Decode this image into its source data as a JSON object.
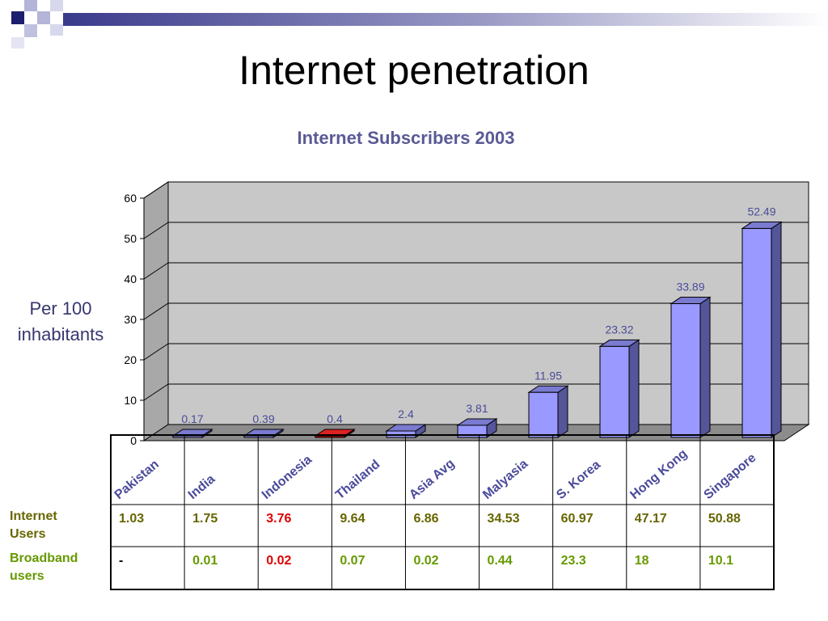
{
  "slide": {
    "title": "Internet penetration",
    "y_axis_title_line1": "Per 100",
    "y_axis_title_line2": "inhabitants"
  },
  "chart_data": {
    "type": "bar",
    "title": "Internet Subscribers 2003",
    "ylabel": "Per 100 inhabitants",
    "xlabel": "",
    "ylim": [
      0,
      60
    ],
    "yticks": [
      0,
      10,
      20,
      30,
      40,
      50,
      60
    ],
    "categories": [
      "Pakistan",
      "India",
      "Indonesia",
      "Thailand",
      "Asia Avg",
      "Malyasia",
      "S. Korea",
      "Hong Kong",
      "Singapore"
    ],
    "values": [
      0.17,
      0.39,
      0.4,
      2.4,
      3.81,
      11.95,
      23.32,
      33.89,
      52.49
    ],
    "value_labels": [
      "0.17",
      "0.39",
      "0.4",
      "2.4",
      "3.81",
      "11.95",
      "23.32",
      "33.89",
      "52.49"
    ],
    "bar_colors": [
      "#9999ff",
      "#9999ff",
      "#cc0000",
      "#9999ff",
      "#9999ff",
      "#9999ff",
      "#9999ff",
      "#9999ff",
      "#9999ff"
    ],
    "grid": true,
    "three_d": true,
    "legend": "none"
  },
  "table": {
    "rows": [
      {
        "label_line1": "Internet",
        "label_line2": "Users",
        "label_color": "#666600",
        "values": [
          "1.03",
          "1.75",
          "3.76",
          "9.64",
          "6.86",
          "34.53",
          "60.97",
          "47.17",
          "50.88"
        ],
        "value_colors": [
          "#666600",
          "#666600",
          "#e00000",
          "#666600",
          "#666600",
          "#666600",
          "#666600",
          "#666600",
          "#666600"
        ]
      },
      {
        "label_line1": "Broadband",
        "label_line2": "users",
        "label_color": "#669900",
        "values": [
          "-",
          "0.01",
          "0.02",
          "0.07",
          "0.02",
          "0.44",
          "23.3",
          "18",
          "10.1"
        ],
        "value_colors": [
          "#000000",
          "#669900",
          "#e00000",
          "#669900",
          "#669900",
          "#669900",
          "#669900",
          "#669900",
          "#669900"
        ]
      }
    ]
  },
  "colors": {
    "title_blue": "#5a5a96",
    "bar_fill": "#9999ff",
    "bar_side": "#55559a",
    "highlight": "#cc0000",
    "wall": "#c8c8c8",
    "label_blue": "#4a4a9a"
  }
}
